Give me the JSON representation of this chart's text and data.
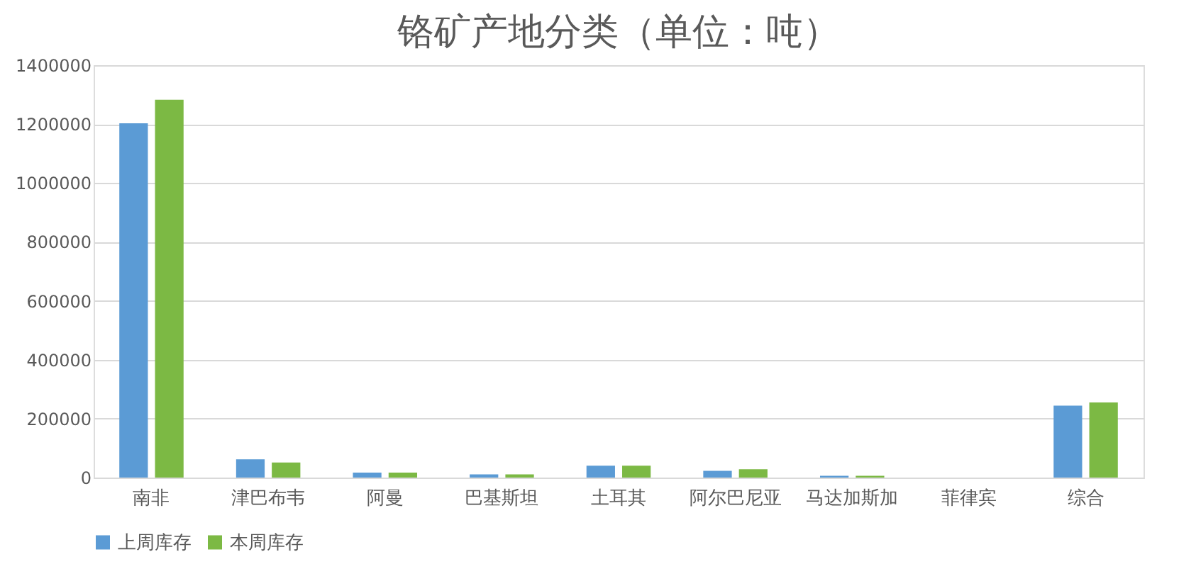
{
  "chart_data": {
    "type": "bar",
    "title": "铬矿产地分类（单位：吨）",
    "categories": [
      "南非",
      "津巴布韦",
      "阿曼",
      "巴基斯坦",
      "土耳其",
      "阿尔巴尼亚",
      "马达加斯加",
      "菲律宾",
      "综合"
    ],
    "series": [
      {
        "name": "上周库存",
        "color": "#5b9bd5",
        "values": [
          1203000,
          62000,
          17000,
          11000,
          40000,
          23000,
          6000,
          0,
          244000
        ]
      },
      {
        "name": "本周库存",
        "color": "#7cb944",
        "values": [
          1283000,
          51000,
          17000,
          11000,
          40000,
          28000,
          6000,
          0,
          255000
        ]
      }
    ],
    "ylim": [
      0,
      1400000
    ],
    "yticks": [
      0,
      200000,
      400000,
      600000,
      800000,
      1000000,
      1200000,
      1400000
    ],
    "grid": "y",
    "legend": "bottom"
  }
}
